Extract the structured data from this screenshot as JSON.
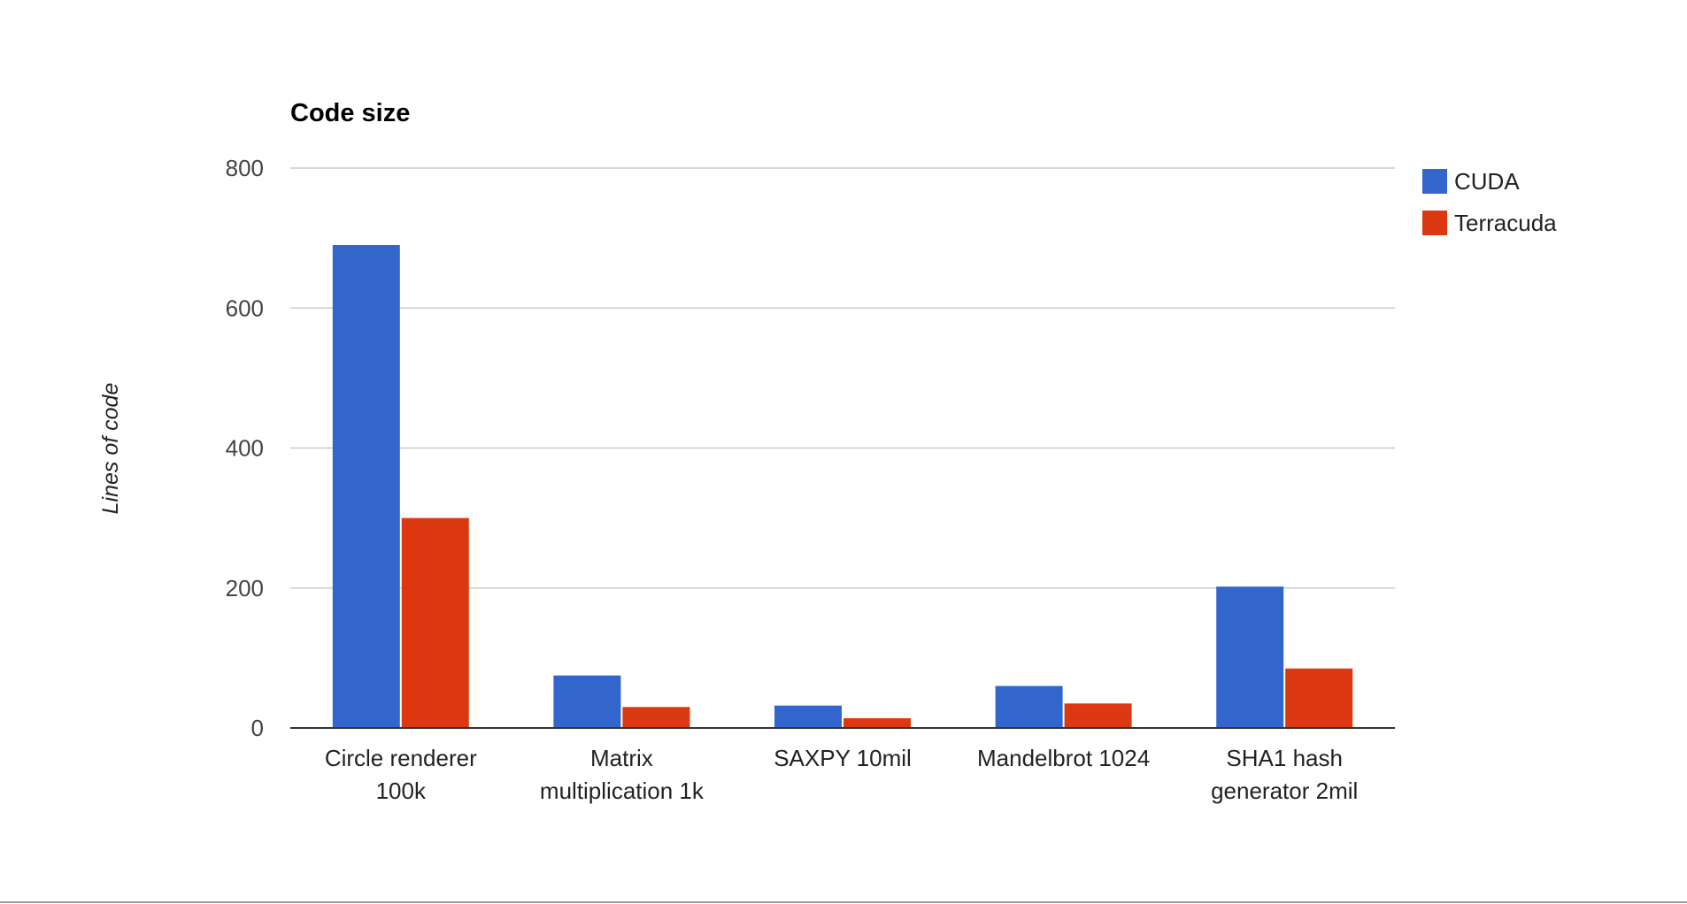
{
  "chart_data": {
    "type": "bar",
    "title": "Code size",
    "xlabel": "",
    "ylabel": "Lines of code",
    "categories": [
      [
        "Circle renderer",
        "100k"
      ],
      [
        "Matrix",
        "multiplication 1k"
      ],
      [
        "SAXPY 10mil"
      ],
      [
        "Mandelbrot 1024"
      ],
      [
        "SHA1 hash",
        "generator 2mil"
      ]
    ],
    "series": [
      {
        "name": "CUDA",
        "color": "#3366cc",
        "values": [
          690,
          75,
          32,
          60,
          202
        ]
      },
      {
        "name": "Terracuda",
        "color": "#dc3912",
        "values": [
          300,
          30,
          14,
          35,
          85
        ]
      }
    ],
    "ylim": [
      0,
      800
    ],
    "yticks": [
      0,
      200,
      400,
      600,
      800
    ],
    "grid": true,
    "legend_position": "right"
  }
}
